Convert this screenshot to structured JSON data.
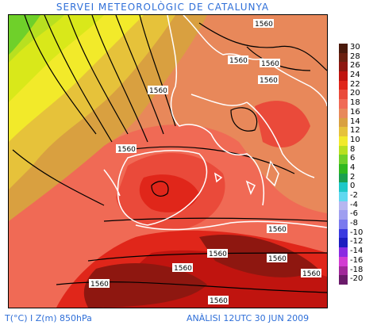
{
  "header": {
    "title": "SERVEI METEOROLÒGIC DE CATALUNYA"
  },
  "footer": {
    "variables": "T(°C) I Z(m) 850hPa",
    "analysis": "ANÀLISI 12UTC 30 JUN 2009"
  },
  "legend": {
    "labels": [
      "30",
      "28",
      "26",
      "24",
      "22",
      "20",
      "18",
      "16",
      "14",
      "12",
      "10",
      "8",
      "6",
      "4",
      "2",
      "0",
      "-2",
      "-4",
      "-6",
      "-8",
      "-10",
      "-12",
      "-14",
      "-16",
      "-18",
      "-20"
    ],
    "colors": [
      "#4a1a0c",
      "#6b2010",
      "#8e1710",
      "#c0140f",
      "#e0261a",
      "#ea4a3a",
      "#f06a55",
      "#e8885a",
      "#d9a040",
      "#e6c23a",
      "#f2ea2a",
      "#b8e020",
      "#6fd02a",
      "#2fb81f",
      "#1aa050",
      "#1ec8c8",
      "#5fd8f0",
      "#b6b6f0",
      "#9f9ff0",
      "#7a7aee",
      "#3a3ae0",
      "#1d1dc0",
      "#8a2be2",
      "#d23cd2",
      "#a0289a",
      "#6a1a6a"
    ]
  },
  "map": {
    "contour_labels": [
      "1560",
      "1560",
      "1560",
      "1560",
      "1560",
      "1560",
      "1560",
      "1560",
      "1560",
      "1560",
      "1560",
      "1560",
      "1560"
    ]
  }
}
